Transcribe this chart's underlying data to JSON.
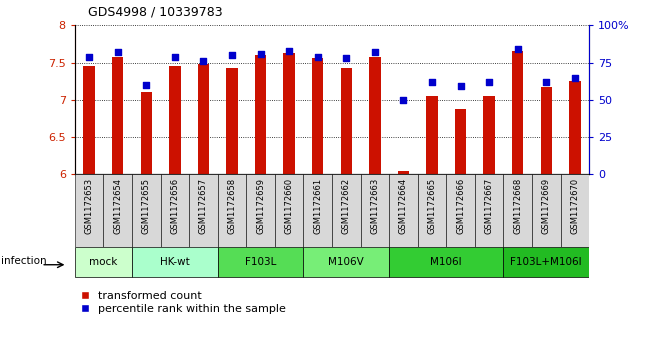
{
  "title": "GDS4998 / 10339783",
  "samples": [
    "GSM1172653",
    "GSM1172654",
    "GSM1172655",
    "GSM1172656",
    "GSM1172657",
    "GSM1172658",
    "GSM1172659",
    "GSM1172660",
    "GSM1172661",
    "GSM1172662",
    "GSM1172663",
    "GSM1172664",
    "GSM1172665",
    "GSM1172666",
    "GSM1172667",
    "GSM1172668",
    "GSM1172669",
    "GSM1172670"
  ],
  "red_values": [
    7.46,
    7.58,
    7.1,
    7.46,
    7.48,
    7.43,
    7.6,
    7.63,
    7.56,
    7.43,
    7.58,
    6.05,
    7.05,
    6.88,
    7.05,
    7.65,
    7.17,
    7.25
  ],
  "blue_percentiles": [
    79,
    82,
    60,
    79,
    76,
    80,
    81,
    83,
    79,
    78,
    82,
    50,
    62,
    59,
    62,
    84,
    62,
    65
  ],
  "ylim_left": [
    6.0,
    8.0
  ],
  "ylim_right": [
    0,
    100
  ],
  "yticks_left": [
    6.0,
    6.5,
    7.0,
    7.5,
    8.0
  ],
  "yticks_right": [
    0,
    25,
    50,
    75,
    100
  ],
  "ytick_labels_left": [
    "6",
    "6.5",
    "7",
    "7.5",
    "8"
  ],
  "ytick_labels_right": [
    "0",
    "25",
    "50",
    "75",
    "100%"
  ],
  "groups": [
    {
      "label": "mock",
      "color": "#ccffcc",
      "start": 0,
      "end": 2
    },
    {
      "label": "HK-wt",
      "color": "#aaffcc",
      "start": 2,
      "end": 5
    },
    {
      "label": "F103L",
      "color": "#55dd55",
      "start": 5,
      "end": 8
    },
    {
      "label": "M106V",
      "color": "#77ee77",
      "start": 8,
      "end": 11
    },
    {
      "label": "M106I",
      "color": "#33cc33",
      "start": 11,
      "end": 15
    },
    {
      "label": "F103L+M106I",
      "color": "#22bb22",
      "start": 15,
      "end": 18
    }
  ],
  "bar_color": "#cc1100",
  "blue_color": "#0000cc",
  "bar_width": 0.4,
  "blue_size": 22,
  "legend_red": "transformed count",
  "legend_blue": "percentile rank within the sample",
  "infection_label": "infection",
  "left_axis_color": "#cc2200",
  "right_axis_color": "#0000cc",
  "bg_color": "#ffffff",
  "xticklabel_bg": "#d8d8d8"
}
